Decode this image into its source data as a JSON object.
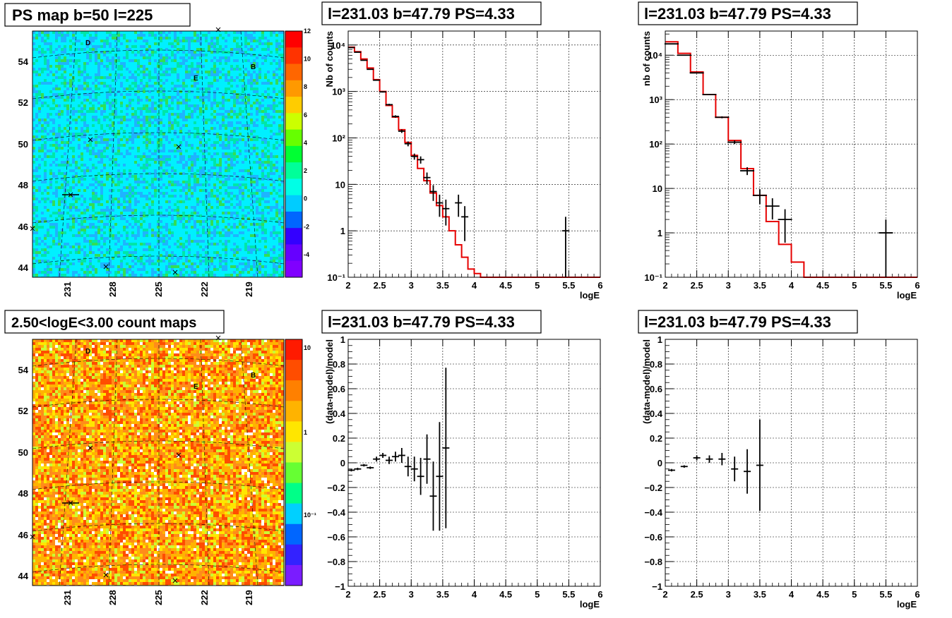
{
  "panels": [
    {
      "id": "map_ps",
      "title": "PS map b=50 l=225",
      "palette": "rainbow",
      "background_color": "#00f0ff",
      "palette_labels": [
        "12",
        "10",
        "8",
        "6",
        "4",
        "2",
        "0",
        "-2",
        "-4"
      ],
      "lon_labels": [
        "231",
        "228",
        "225",
        "222",
        "219"
      ],
      "lat_labels": [
        "54",
        "52",
        "50",
        "48",
        "46",
        "44"
      ],
      "source_letters": [
        "D",
        "E",
        "B"
      ]
    },
    {
      "id": "map_counts",
      "title": "2.50<logE<3.00 count maps",
      "palette": "heat",
      "background_color": "#ff8c1a",
      "palette_labels": [
        "10",
        "1",
        "10⁻¹"
      ],
      "lon_labels": [
        "231",
        "228",
        "225",
        "222",
        "219"
      ],
      "lat_labels": [
        "54",
        "52",
        "50",
        "48",
        "46",
        "44"
      ],
      "source_letters": [
        "D",
        "E",
        "B"
      ]
    }
  ],
  "chart_data": [
    {
      "id": "spec_left",
      "type": "line",
      "scale_y": "log",
      "title": "l=231.03 b=47.79 PS=4.33",
      "xlabel": "logE",
      "ylabel": "Nb of counts",
      "xlim": [
        2,
        6
      ],
      "ylim": [
        0.1,
        20000
      ],
      "x_ticks": [
        "2",
        "2.5",
        "3",
        "3.5",
        "4",
        "4.5",
        "5",
        "5.5",
        "6"
      ],
      "y_ticks": [
        {
          "v": 0.1,
          "l": "10⁻¹"
        },
        {
          "v": 1,
          "l": "1"
        },
        {
          "v": 10,
          "l": "10"
        },
        {
          "v": 100,
          "l": "10²"
        },
        {
          "v": 1000,
          "l": "10³"
        },
        {
          "v": 10000,
          "l": "10⁴"
        }
      ],
      "grid": true,
      "model_step_edges": [
        2.0,
        2.1,
        2.2,
        2.3,
        2.4,
        2.5,
        2.6,
        2.7,
        2.8,
        2.9,
        3.0,
        3.1,
        3.2,
        3.3,
        3.4,
        3.5,
        3.6,
        3.7,
        3.8,
        3.9,
        4.0,
        4.1,
        6.0
      ],
      "model_step_values": [
        9000,
        7200,
        5000,
        3200,
        1800,
        1000,
        500,
        280,
        150,
        80,
        42,
        22,
        12,
        6.5,
        3.5,
        2,
        1,
        0.5,
        0.27,
        0.15,
        0.12,
        0.1
      ],
      "data_points": [
        {
          "x": 2.05,
          "y": 8800,
          "yerr_lo": 94,
          "yerr_hi": 94
        },
        {
          "x": 2.15,
          "y": 7000,
          "yerr_lo": 84,
          "yerr_hi": 84
        },
        {
          "x": 2.25,
          "y": 4700,
          "yerr_lo": 69,
          "yerr_hi": 69
        },
        {
          "x": 2.35,
          "y": 3000,
          "yerr_lo": 55,
          "yerr_hi": 55
        },
        {
          "x": 2.45,
          "y": 1750,
          "yerr_lo": 42,
          "yerr_hi": 42
        },
        {
          "x": 2.55,
          "y": 980,
          "yerr_lo": 31,
          "yerr_hi": 31
        },
        {
          "x": 2.65,
          "y": 520,
          "yerr_lo": 23,
          "yerr_hi": 23
        },
        {
          "x": 2.75,
          "y": 290,
          "yerr_lo": 17,
          "yerr_hi": 17
        },
        {
          "x": 2.85,
          "y": 140,
          "yerr_lo": 12,
          "yerr_hi": 12
        },
        {
          "x": 2.95,
          "y": 75,
          "yerr_lo": 9,
          "yerr_hi": 9
        },
        {
          "x": 3.05,
          "y": 40,
          "yerr_lo": 6,
          "yerr_hi": 6
        },
        {
          "x": 3.15,
          "y": 34,
          "yerr_lo": 6,
          "yerr_hi": 6
        },
        {
          "x": 3.25,
          "y": 14,
          "yerr_lo": 4,
          "yerr_hi": 4
        },
        {
          "x": 3.35,
          "y": 7,
          "yerr_lo": 2.6,
          "yerr_hi": 2.6
        },
        {
          "x": 3.45,
          "y": 4,
          "yerr_lo": 2,
          "yerr_hi": 2
        },
        {
          "x": 3.55,
          "y": 3,
          "yerr_lo": 1.7,
          "yerr_hi": 1.7
        },
        {
          "x": 3.75,
          "y": 4,
          "yerr_lo": 2,
          "yerr_hi": 2
        },
        {
          "x": 3.85,
          "y": 2,
          "yerr_lo": 1.4,
          "yerr_hi": 1.4
        },
        {
          "x": 5.45,
          "y": 1,
          "yerr_lo": 0.99,
          "yerr_hi": 1
        }
      ]
    },
    {
      "id": "spec_right",
      "type": "line",
      "scale_y": "log",
      "title": "l=231.03 b=47.79 PS=4.33",
      "xlabel": "logE",
      "ylabel": "nb of counts",
      "xlim": [
        2,
        6
      ],
      "ylim": [
        0.1,
        35000
      ],
      "x_ticks": [
        "2",
        "2.5",
        "3",
        "3.5",
        "4",
        "4.5",
        "5",
        "5.5",
        "6"
      ],
      "y_ticks": [
        {
          "v": 0.1,
          "l": "10⁻¹"
        },
        {
          "v": 1,
          "l": "1"
        },
        {
          "v": 10,
          "l": "10"
        },
        {
          "v": 100,
          "l": "10²"
        },
        {
          "v": 1000,
          "l": "10³"
        },
        {
          "v": 10000,
          "l": "10⁴"
        }
      ],
      "grid": true,
      "model_step_edges": [
        2.0,
        2.2,
        2.4,
        2.6,
        2.8,
        3.0,
        3.2,
        3.4,
        3.6,
        3.8,
        4.0,
        4.2,
        6.0
      ],
      "model_step_values": [
        20000,
        11000,
        4200,
        1300,
        400,
        120,
        28,
        7,
        1.8,
        0.55,
        0.22,
        0.1
      ],
      "data_points": [
        {
          "x": 2.1,
          "y": 18000,
          "yerr_lo": 134,
          "yerr_hi": 134
        },
        {
          "x": 2.3,
          "y": 10000,
          "yerr_lo": 100,
          "yerr_hi": 100
        },
        {
          "x": 2.5,
          "y": 4000,
          "yerr_lo": 63,
          "yerr_hi": 63
        },
        {
          "x": 2.7,
          "y": 1300,
          "yerr_lo": 36,
          "yerr_hi": 36
        },
        {
          "x": 2.9,
          "y": 400,
          "yerr_lo": 20,
          "yerr_hi": 20
        },
        {
          "x": 3.1,
          "y": 110,
          "yerr_lo": 10,
          "yerr_hi": 10
        },
        {
          "x": 3.3,
          "y": 25,
          "yerr_lo": 5,
          "yerr_hi": 5
        },
        {
          "x": 3.5,
          "y": 7,
          "yerr_lo": 2.6,
          "yerr_hi": 2.6
        },
        {
          "x": 3.7,
          "y": 4,
          "yerr_lo": 2,
          "yerr_hi": 2
        },
        {
          "x": 3.9,
          "y": 2,
          "yerr_lo": 1.4,
          "yerr_hi": 1.4
        },
        {
          "x": 5.5,
          "y": 1,
          "yerr_lo": 0.99,
          "yerr_hi": 1
        }
      ]
    },
    {
      "id": "resid_left",
      "type": "scatter",
      "title": "l=231.03 b=47.79 PS=4.33",
      "xlabel": "logE",
      "ylabel": "(data-model)/model",
      "xlim": [
        2,
        6
      ],
      "ylim": [
        -1,
        1
      ],
      "x_ticks": [
        "2",
        "2.5",
        "3",
        "3.5",
        "4",
        "4.5",
        "5",
        "5.5",
        "6"
      ],
      "y_ticks": [
        "-1",
        "-0.8",
        "-0.6",
        "-0.4",
        "-0.2",
        "0",
        "0.2",
        "0.4",
        "0.6",
        "0.8",
        "1"
      ],
      "grid": true,
      "data_points": [
        {
          "x": 2.05,
          "y": -0.06,
          "err": 0.01
        },
        {
          "x": 2.15,
          "y": -0.05,
          "err": 0.01
        },
        {
          "x": 2.25,
          "y": -0.02,
          "err": 0.01
        },
        {
          "x": 2.35,
          "y": -0.04,
          "err": 0.01
        },
        {
          "x": 2.45,
          "y": 0.03,
          "err": 0.02
        },
        {
          "x": 2.55,
          "y": 0.06,
          "err": 0.02
        },
        {
          "x": 2.65,
          "y": 0.02,
          "err": 0.03
        },
        {
          "x": 2.75,
          "y": 0.05,
          "err": 0.04
        },
        {
          "x": 2.85,
          "y": 0.06,
          "err": 0.06
        },
        {
          "x": 2.95,
          "y": -0.03,
          "err": 0.08
        },
        {
          "x": 3.05,
          "y": -0.05,
          "err": 0.1
        },
        {
          "x": 3.15,
          "y": -0.11,
          "err": 0.15
        },
        {
          "x": 3.25,
          "y": 0.03,
          "err": 0.2
        },
        {
          "x": 3.35,
          "y": -0.27,
          "err": 0.28
        },
        {
          "x": 3.45,
          "y": -0.11,
          "err": 0.44
        },
        {
          "x": 3.55,
          "y": 0.12,
          "err": 0.65
        }
      ]
    },
    {
      "id": "resid_right",
      "type": "scatter",
      "title": "l=231.03 b=47.79 PS=4.33",
      "xlabel": "logE",
      "ylabel": "(data-model)/model",
      "xlim": [
        2,
        6
      ],
      "ylim": [
        -1,
        1
      ],
      "x_ticks": [
        "2",
        "2.5",
        "3",
        "3.5",
        "4",
        "4.5",
        "5",
        "5.5",
        "6"
      ],
      "y_ticks": [
        "-1",
        "-0.8",
        "-0.6",
        "-0.4",
        "-0.2",
        "0",
        "0.2",
        "0.4",
        "0.6",
        "0.8",
        "1"
      ],
      "grid": true,
      "data_points": [
        {
          "x": 2.1,
          "y": -0.06,
          "err": 0.01
        },
        {
          "x": 2.3,
          "y": -0.03,
          "err": 0.01
        },
        {
          "x": 2.5,
          "y": 0.04,
          "err": 0.02
        },
        {
          "x": 2.7,
          "y": 0.03,
          "err": 0.03
        },
        {
          "x": 2.9,
          "y": 0.03,
          "err": 0.05
        },
        {
          "x": 3.1,
          "y": -0.05,
          "err": 0.1
        },
        {
          "x": 3.3,
          "y": -0.07,
          "err": 0.18
        },
        {
          "x": 3.5,
          "y": -0.02,
          "err": 0.37
        }
      ]
    }
  ]
}
